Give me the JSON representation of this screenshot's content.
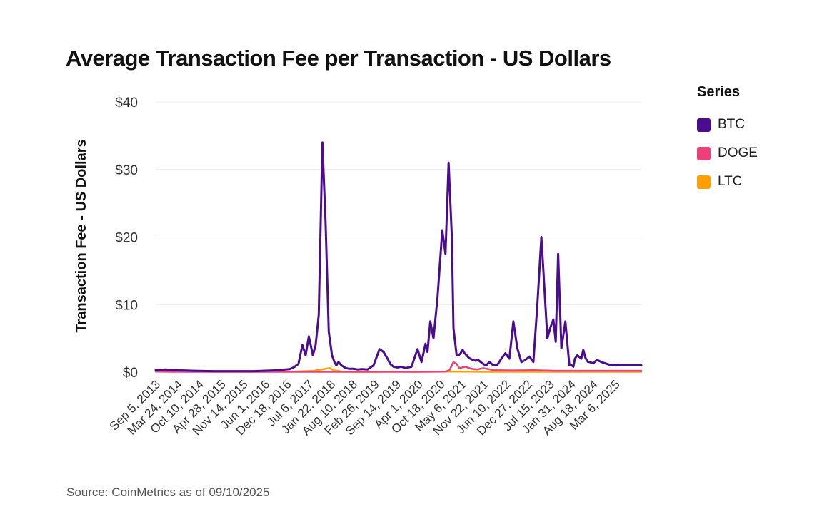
{
  "chart_data": {
    "type": "line",
    "title": "Average Transaction Fee per Transaction - US Dollars",
    "ylabel": "Transaction Fee - US Dollars",
    "xlabel": "",
    "ylim": [
      0,
      40
    ],
    "y_ticks": [
      "$0",
      "$10",
      "$20",
      "$30",
      "$40"
    ],
    "y_tick_values": [
      0,
      10,
      20,
      30,
      40
    ],
    "x_ticks": [
      "Sep 5, 2013",
      "Mar 24, 2014",
      "Oct 10, 2014",
      "Apr 28, 2015",
      "Nov 14, 2015",
      "Jun 1, 2016",
      "Dec 18, 2016",
      "Jul 6, 2017",
      "Jan 22, 2018",
      "Aug 10, 2018",
      "Feb 26, 2019",
      "Sep 14, 2019",
      "Apr 1, 2020",
      "Oct 18, 2020",
      "May 6, 2021",
      "Nov 22, 2021",
      "Jun 10, 2022",
      "Dec 27, 2022",
      "Jul 15, 2023",
      "Jan 31, 2024",
      "Aug 18, 2024",
      "Mar 6, 2025"
    ],
    "x_range_years": [
      2013.55,
      2025.7
    ],
    "x_tick_years": [
      2013.68,
      2014.23,
      2014.77,
      2015.32,
      2015.87,
      2016.42,
      2016.96,
      2017.51,
      2018.06,
      2018.61,
      2019.16,
      2019.7,
      2020.25,
      2020.8,
      2021.34,
      2021.89,
      2022.44,
      2022.99,
      2023.54,
      2024.08,
      2024.63,
      2025.18
    ],
    "grid": true,
    "legend_title": "Series",
    "legend_position": "right",
    "series": [
      {
        "name": "BTC",
        "color": "#4b0c8f",
        "x": [
          2013.55,
          2013.8,
          2014.0,
          2014.5,
          2015.0,
          2015.5,
          2016.0,
          2016.5,
          2016.9,
          2017.0,
          2017.12,
          2017.22,
          2017.3,
          2017.38,
          2017.48,
          2017.55,
          2017.63,
          2017.72,
          2017.8,
          2017.88,
          2017.96,
          2018.02,
          2018.07,
          2018.12,
          2018.2,
          2018.3,
          2018.4,
          2018.5,
          2018.6,
          2018.7,
          2018.85,
          2019.0,
          2019.15,
          2019.25,
          2019.35,
          2019.42,
          2019.5,
          2019.6,
          2019.7,
          2019.8,
          2019.95,
          2020.1,
          2020.2,
          2020.3,
          2020.35,
          2020.42,
          2020.5,
          2020.6,
          2020.72,
          2020.8,
          2020.88,
          2020.96,
          2021.0,
          2021.08,
          2021.13,
          2021.18,
          2021.23,
          2021.28,
          2021.33,
          2021.37,
          2021.42,
          2021.48,
          2021.55,
          2021.62,
          2021.68,
          2021.75,
          2021.82,
          2021.9,
          2022.0,
          2022.1,
          2022.2,
          2022.3,
          2022.4,
          2022.5,
          2022.6,
          2022.7,
          2022.8,
          2022.9,
          2023.0,
          2023.1,
          2023.2,
          2023.28,
          2023.35,
          2023.42,
          2023.5,
          2023.56,
          2023.62,
          2023.7,
          2023.8,
          2023.9,
          2023.96,
          2024.0,
          2024.04,
          2024.1,
          2024.2,
          2024.25,
          2024.3,
          2024.33,
          2024.37,
          2024.4,
          2024.45,
          2024.5,
          2024.55,
          2024.6,
          2024.7,
          2024.8,
          2024.9,
          2025.0,
          2025.1,
          2025.2,
          2025.3,
          2025.4,
          2025.5,
          2025.6,
          2025.7
        ],
        "values": [
          0.3,
          0.4,
          0.3,
          0.2,
          0.15,
          0.15,
          0.15,
          0.25,
          0.45,
          0.7,
          1.2,
          4.0,
          2.5,
          5.3,
          2.5,
          4.0,
          8.5,
          34.0,
          22.0,
          6.0,
          2.5,
          1.5,
          1.0,
          1.5,
          1.0,
          0.6,
          0.5,
          0.5,
          0.4,
          0.45,
          0.4,
          1.0,
          3.4,
          3.0,
          2.0,
          1.2,
          0.8,
          0.7,
          0.8,
          0.6,
          0.8,
          3.4,
          1.5,
          4.2,
          3.0,
          7.5,
          5.0,
          11.0,
          21.0,
          17.5,
          31.0,
          20.0,
          6.5,
          2.5,
          2.5,
          2.8,
          3.3,
          2.8,
          2.5,
          2.2,
          2.0,
          1.8,
          1.7,
          1.8,
          1.5,
          1.2,
          1.0,
          1.5,
          1.0,
          1.1,
          2.0,
          2.8,
          2.0,
          7.5,
          3.5,
          1.5,
          1.8,
          2.3,
          1.5,
          10.0,
          20.0,
          12.0,
          5.0,
          6.5,
          7.8,
          4.5,
          17.5,
          3.5,
          7.5,
          1.0,
          1.0,
          0.8,
          2.0,
          2.5,
          2.0,
          3.3,
          2.2,
          1.8,
          1.5,
          1.5,
          1.4,
          1.3,
          1.6,
          1.8,
          1.5,
          1.3,
          1.1,
          1.0,
          1.1,
          1.0,
          1.0,
          1.0,
          1.0,
          1.0,
          1.0
        ]
      },
      {
        "name": "DOGE",
        "color": "#ec407a",
        "x": [
          2013.55,
          2014.0,
          2015.0,
          2016.0,
          2017.0,
          2018.0,
          2019.0,
          2020.0,
          2020.8,
          2020.9,
          2021.0,
          2021.08,
          2021.15,
          2021.3,
          2021.45,
          2021.6,
          2021.75,
          2022.0,
          2022.5,
          2023.0,
          2023.5,
          2024.0,
          2024.5,
          2025.0,
          2025.7
        ],
        "values": [
          0.1,
          0.05,
          0.05,
          0.05,
          0.05,
          0.05,
          0.05,
          0.05,
          0.08,
          0.3,
          1.5,
          1.2,
          0.6,
          0.8,
          0.5,
          0.4,
          0.6,
          0.3,
          0.25,
          0.3,
          0.2,
          0.2,
          0.2,
          0.2,
          0.2
        ]
      },
      {
        "name": "LTC",
        "color": "#ffa000",
        "x": [
          2013.55,
          2013.7,
          2013.85,
          2014.0,
          2015.0,
          2016.0,
          2017.0,
          2017.5,
          2017.9,
          2018.0,
          2018.2,
          2018.5,
          2019.0,
          2019.5,
          2020.0,
          2021.0,
          2022.0,
          2023.0,
          2024.0,
          2025.0,
          2025.7
        ],
        "values": [
          0.1,
          0.2,
          0.35,
          0.15,
          0.05,
          0.05,
          0.1,
          0.2,
          0.6,
          0.3,
          0.1,
          0.05,
          0.05,
          0.1,
          0.05,
          0.1,
          0.05,
          0.05,
          0.05,
          0.05,
          0.05
        ]
      }
    ]
  },
  "source": "Source: CoinMetrics as of 09/10/2025"
}
